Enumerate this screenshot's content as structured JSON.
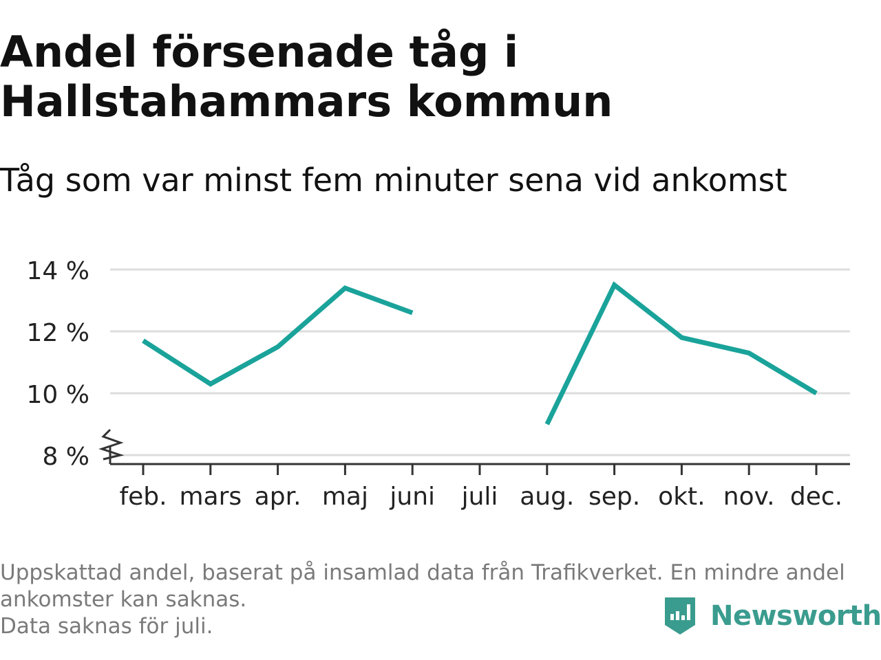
{
  "title": "Andel försenade tåg i Hallstahammars kommun",
  "subtitle": "Tåg som var minst fem minuter sena vid ankomst",
  "footnote": {
    "line1": "Uppskattad andel, baserat på insamlad data från Trafikverket. En mindre andel",
    "line2": "ankomster kan saknas.",
    "line3": "Data saknas för juli."
  },
  "brand": {
    "name": "Newsworthy",
    "icon": "newsworthy-logo-icon",
    "color": "#3a9c8e"
  },
  "chart_data": {
    "type": "line",
    "title": "Andel försenade tåg i Hallstahammars kommun",
    "subtitle": "Tåg som var minst fem minuter sena vid ankomst",
    "categories": [
      "feb.",
      "mars",
      "apr.",
      "maj",
      "juni",
      "juli",
      "aug.",
      "sep.",
      "okt.",
      "nov.",
      "dec."
    ],
    "series": [
      {
        "color": "#1aa39a",
        "values": [
          11.7,
          10.3,
          11.5,
          13.4,
          12.6,
          null,
          9.0,
          13.5,
          11.8,
          11.3,
          10.0
        ]
      }
    ],
    "ylim": [
      8,
      14
    ],
    "yticks": [
      8,
      10,
      12,
      14
    ],
    "ytick_labels": [
      "8 %",
      "10 %",
      "12 %",
      "14 %"
    ],
    "xlabel": "",
    "ylabel": "",
    "grid": true,
    "axis_break": true,
    "colors": {
      "line": "#1aa39a",
      "grid": "#dddddd",
      "axis": "#333333",
      "text": "#222222"
    }
  }
}
